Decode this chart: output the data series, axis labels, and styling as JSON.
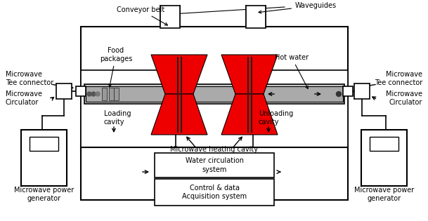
{
  "bg_color": "#ffffff",
  "line_color": "#000000",
  "red_color": "#ee0000",
  "fig_width": 6.09,
  "fig_height": 3.15,
  "labels": {
    "conveyor_belt": "Conveyor belt",
    "waveguides": "Waveguides",
    "food_packages": "Food\npackages",
    "hot_water": "Hot water",
    "microwave_tee_left": "Microwave\nTee connector",
    "microwave_tee_right": "Microwave\nTee connector",
    "microwave_circ_left": "Microwave\nCirculator",
    "microwave_circ_right": "Microwave\nCirculator",
    "loading_cavity": "Loading\ncavity",
    "unloading_cavity": "Unloading\ncavity",
    "microwave_heating": "Microwave heating cavity",
    "water_circ": "Water circulation\nsystem",
    "control": "Control & data\nAcquisition system",
    "power_gen_left": "Microwave power\ngenerator",
    "power_gen_right": "Microwave power\ngenerator"
  }
}
